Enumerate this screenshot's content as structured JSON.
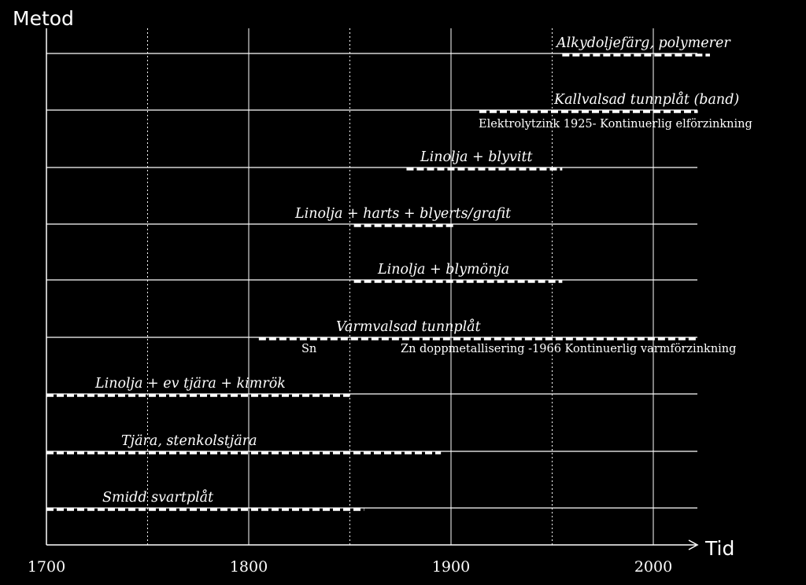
{
  "chart_data": {
    "type": "timeline",
    "title": "",
    "ylabel": "Metod",
    "xlabel": "Tid",
    "xlim": [
      1700,
      2022
    ],
    "x_ticks": [
      "1700",
      "1800",
      "1900",
      "2000"
    ],
    "grid": true,
    "methods": [
      {
        "label": "Alkydoljefärg, polymerer",
        "start": 1955,
        "end": 2028
      },
      {
        "label": "Kallvalsad tunnplåt  (band)",
        "start": 1914,
        "end": 2022,
        "note": "Elektrolytzink 1925- Kontinuerlig elförzinkning"
      },
      {
        "label": "Linolja + blyvitt",
        "start": 1878,
        "end": 1955
      },
      {
        "label": "Linolja + harts + blyerts/grafit",
        "start": 1852,
        "end": 1902
      },
      {
        "label": "Linolja + blymönja",
        "start": 1852,
        "end": 1955
      },
      {
        "label": "Varmvalsad tunnplåt",
        "start": 1805,
        "end": 2022,
        "notes": [
          "Sn",
          "Zn doppmetallisering -1966  Kontinuerlig varmförzinkning"
        ]
      },
      {
        "label": "Linolja + ev tjära + kimrök",
        "start": 1700,
        "end": 1850
      },
      {
        "label": "Tjära, stenkolstjära",
        "start": 1700,
        "end": 1895
      },
      {
        "label": "Smidd svartplåt",
        "start": 1700,
        "end": 1857
      }
    ]
  }
}
